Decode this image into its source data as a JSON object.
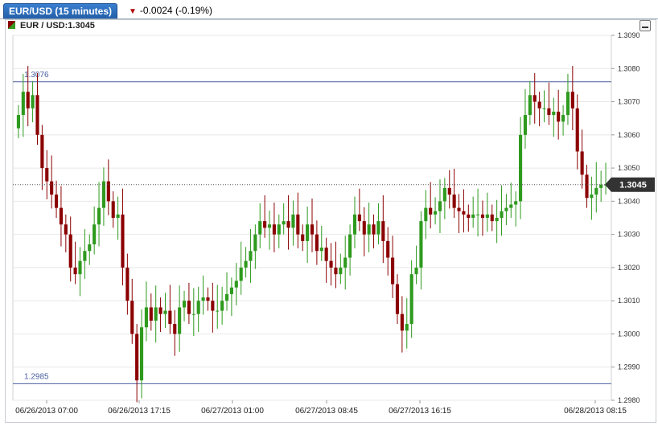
{
  "tab": {
    "title": "EUR/USD (15 minutes)",
    "change": "-0.0024 (-0.19%)"
  },
  "legend": {
    "label": "EUR / USD:1.3045"
  },
  "colors": {
    "up": "#2e9a1e",
    "down": "#8b0000",
    "ref_line": "#4a5fa0",
    "grid": "#e8e8e8"
  },
  "chart_data": {
    "type": "candlestick",
    "symbol": "EUR/USD",
    "interval": "15 minutes",
    "ylim": [
      1.298,
      1.309
    ],
    "y_ticks": [
      "1.3090",
      "1.3080",
      "1.3070",
      "1.3060",
      "1.3050",
      "1.3040",
      "1.3030",
      "1.3020",
      "1.3010",
      "1.3000",
      "1.2990",
      "1.2980"
    ],
    "x_ticks": [
      "06/26/2013 07:00",
      "06/26/2013 17:15",
      "06/27/2013 01:00",
      "06/27/2013 08:45",
      "06/27/2013 16:15",
      "06/28/2013 08:15"
    ],
    "current_price": "1.3045",
    "reference_lines": [
      {
        "label": "1.3076",
        "value": 1.3076
      },
      {
        "label": "1.2985",
        "value": 1.2985
      }
    ],
    "closes": [
      1.3066,
      1.3073,
      1.3068,
      1.3072,
      1.306,
      1.305,
      1.3046,
      1.3042,
      1.3038,
      1.3033,
      1.303,
      1.302,
      1.3018,
      1.3022,
      1.3025,
      1.3027,
      1.3033,
      1.3038,
      1.3046,
      1.304,
      1.3035,
      1.3036,
      1.302,
      1.301,
      1.3,
      1.2986,
      1.3002,
      1.3008,
      1.3004,
      1.3008,
      1.3006,
      1.3007,
      1.3003,
      1.3,
      1.3008,
      1.301,
      1.3006,
      1.3006,
      1.301,
      1.3011,
      1.301,
      1.3007,
      1.3007,
      1.301,
      1.3012,
      1.3014,
      1.3016,
      1.302,
      1.3022,
      1.3025,
      1.303,
      1.3034,
      1.3032,
      1.3033,
      1.303,
      1.3033,
      1.3034,
      1.3032,
      1.3036,
      1.303,
      1.3028,
      1.3033,
      1.303,
      1.3025,
      1.3026,
      1.3022,
      1.302,
      1.3018,
      1.302,
      1.3023,
      1.303,
      1.3036,
      1.3034,
      1.303,
      1.3033,
      1.303,
      1.3034,
      1.3028,
      1.3023,
      1.3015,
      1.3006,
      1.3001,
      1.3003,
      1.3018,
      1.302,
      1.3034,
      1.3038,
      1.3036,
      1.3037,
      1.304,
      1.3044,
      1.3042,
      1.3038,
      1.3037,
      1.3036,
      1.3035,
      1.3036,
      1.3036,
      1.3035,
      1.3036,
      1.3034,
      1.3035,
      1.3037,
      1.3038,
      1.3039,
      1.304,
      1.306,
      1.3066,
      1.3072,
      1.307,
      1.3068,
      1.3068,
      1.3066,
      1.3067,
      1.3064,
      1.3066,
      1.3073,
      1.3068,
      1.3055,
      1.3048,
      1.3041,
      1.3042,
      1.3044,
      1.3045,
      1.3045
    ]
  }
}
